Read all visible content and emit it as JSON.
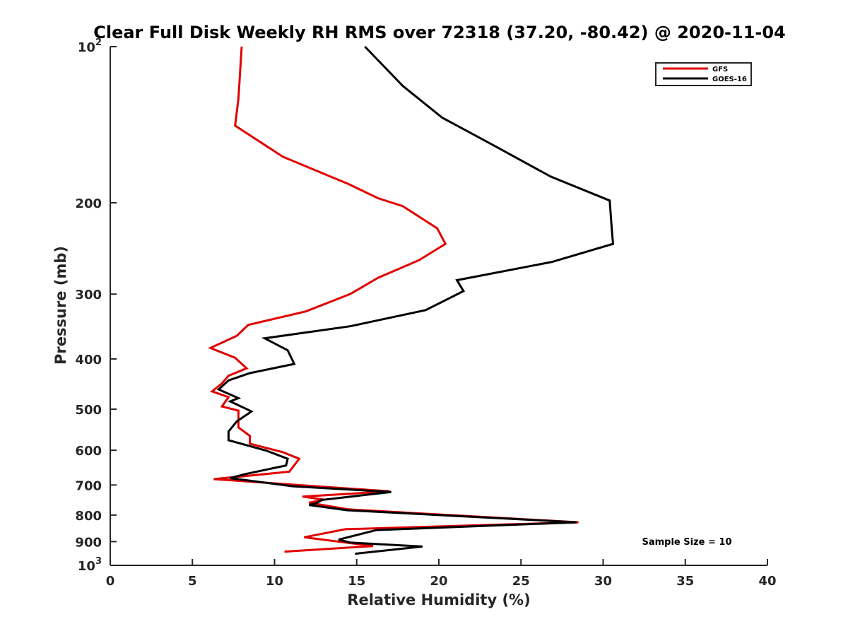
{
  "chart_data": {
    "type": "line",
    "title": "Clear Full Disk Weekly RH RMS over 72318 (37.20, -80.42) @ 2020-11-04",
    "xlabel": "Relative Humidity (%)",
    "ylabel": "Pressure (mb)",
    "xlim": [
      0,
      40
    ],
    "ylim": [
      100,
      1000
    ],
    "yscale": "log",
    "y_reversed": true,
    "xticks": [
      "0",
      "5",
      "10",
      "15",
      "20",
      "25",
      "30",
      "35",
      "40"
    ],
    "yticks": [
      {
        "value": 100,
        "base": "10",
        "exp": "2"
      },
      {
        "value": 200,
        "label": "200"
      },
      {
        "value": 300,
        "label": "300"
      },
      {
        "value": 400,
        "label": "400"
      },
      {
        "value": 500,
        "label": "500"
      },
      {
        "value": 600,
        "label": "600"
      },
      {
        "value": 700,
        "label": "700"
      },
      {
        "value": 800,
        "label": "800"
      },
      {
        "value": 900,
        "label": "900"
      },
      {
        "value": 1000,
        "base": "10",
        "exp": "3"
      }
    ],
    "legend": {
      "location": "top-right"
    },
    "grid": false,
    "annotation": "Sample Size = 10",
    "series": [
      {
        "name": "GFS",
        "color": "#e00000",
        "points": [
          [
            8.0,
            100
          ],
          [
            7.8,
            126
          ],
          [
            7.6,
            142
          ],
          [
            10.5,
            163
          ],
          [
            14.5,
            184
          ],
          [
            16.3,
            196
          ],
          [
            17.8,
            203
          ],
          [
            19.9,
            224
          ],
          [
            20.4,
            240
          ],
          [
            18.8,
            258
          ],
          [
            16.3,
            279
          ],
          [
            14.6,
            300
          ],
          [
            11.9,
            324
          ],
          [
            8.4,
            344
          ],
          [
            7.7,
            361
          ],
          [
            6.1,
            381
          ],
          [
            7.6,
            398
          ],
          [
            8.3,
            417
          ],
          [
            7.2,
            431
          ],
          [
            6.8,
            446
          ],
          [
            6.2,
            462
          ],
          [
            7.2,
            474
          ],
          [
            6.8,
            494
          ],
          [
            7.8,
            503
          ],
          [
            7.8,
            542
          ],
          [
            8.5,
            563
          ],
          [
            8.5,
            583
          ],
          [
            10.5,
            605
          ],
          [
            11.5,
            623
          ],
          [
            10.9,
            660
          ],
          [
            6.3,
            682
          ],
          [
            17.0,
            720
          ],
          [
            11.7,
            737
          ],
          [
            13.0,
            747
          ],
          [
            12.1,
            757
          ],
          [
            14.5,
            780
          ],
          [
            28.5,
            826
          ],
          [
            14.3,
            852
          ],
          [
            11.8,
            883
          ],
          [
            16.0,
            918
          ],
          [
            10.6,
            941
          ]
        ]
      },
      {
        "name": "GOES-16",
        "color": "#000000",
        "points": [
          [
            15.5,
            100
          ],
          [
            17.8,
            119
          ],
          [
            20.2,
            137
          ],
          [
            23.5,
            156
          ],
          [
            26.8,
            178
          ],
          [
            30.4,
            198
          ],
          [
            30.5,
            219
          ],
          [
            30.6,
            240
          ],
          [
            26.9,
            260
          ],
          [
            21.1,
            282
          ],
          [
            21.5,
            296
          ],
          [
            19.2,
            322
          ],
          [
            14.6,
            346
          ],
          [
            9.4,
            365
          ],
          [
            10.8,
            385
          ],
          [
            11.2,
            409
          ],
          [
            8.5,
            426
          ],
          [
            7.2,
            440
          ],
          [
            6.6,
            458
          ],
          [
            7.8,
            476
          ],
          [
            7.3,
            483
          ],
          [
            8.6,
            505
          ],
          [
            7.7,
            528
          ],
          [
            7.2,
            552
          ],
          [
            7.2,
            574
          ],
          [
            9.5,
            601
          ],
          [
            10.8,
            623
          ],
          [
            10.7,
            642
          ],
          [
            8.2,
            667
          ],
          [
            7.3,
            679
          ],
          [
            11.1,
            704
          ],
          [
            17.1,
            722
          ],
          [
            12.9,
            748
          ],
          [
            12.5,
            760
          ],
          [
            12.1,
            765
          ],
          [
            14.4,
            783
          ],
          [
            28.4,
            826
          ],
          [
            16.2,
            855
          ],
          [
            13.9,
            892
          ],
          [
            14.6,
            904
          ],
          [
            19.0,
            920
          ],
          [
            14.9,
            950
          ]
        ]
      }
    ]
  }
}
